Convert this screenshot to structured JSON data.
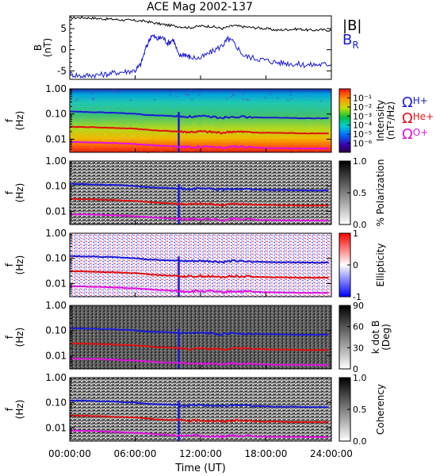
{
  "title": "ACE Mag 2002-137",
  "chart_data": [
    {
      "type": "line",
      "panel": "field",
      "ylabel": "B (nT)",
      "ylabel_main": "B",
      "ylabel_unit": "(nT)",
      "ylim": [
        -7,
        8
      ],
      "yticks": [
        "5",
        "0",
        "-5"
      ],
      "ytick_values": [
        5,
        0,
        -5
      ],
      "legend": [
        {
          "text": "|B|",
          "color": "#000000"
        },
        {
          "text": "B",
          "sub": "R",
          "color": "#1a1ad6"
        }
      ],
      "series": [
        {
          "name": "|B|",
          "color": "#000000",
          "x": [
            0,
            1,
            2,
            3,
            4,
            5,
            6,
            7,
            8,
            9,
            10,
            11,
            12,
            13,
            14,
            15,
            16,
            17,
            18,
            19,
            20,
            21,
            22,
            23,
            24
          ],
          "y": [
            7.5,
            7.6,
            7.5,
            7.3,
            7.2,
            7.0,
            6.9,
            6.7,
            6.2,
            5.8,
            5.5,
            5.2,
            5.6,
            5.5,
            5.0,
            5.7,
            5.4,
            5.2,
            5.0,
            4.6,
            4.8,
            4.9,
            4.6,
            4.7,
            4.6
          ]
        },
        {
          "name": "B_R",
          "color": "#1a1ad6",
          "x": [
            0,
            1,
            2,
            3,
            4,
            5,
            6,
            6.5,
            7,
            7.5,
            8,
            8.5,
            9,
            9.5,
            10,
            10.5,
            11,
            12,
            13,
            14,
            14.5,
            15,
            16,
            17,
            18,
            19,
            20,
            21,
            22,
            23,
            24
          ],
          "y": [
            -5.7,
            -6.2,
            -6.0,
            -5.9,
            -5.5,
            -5.2,
            -4.9,
            -3.5,
            0.5,
            3.5,
            2.5,
            3.0,
            1.5,
            2.5,
            -1.5,
            -1.0,
            -1.8,
            -2.0,
            -0.5,
            1.0,
            2.5,
            1.8,
            -1.5,
            -2.0,
            -2.5,
            -3.0,
            -3.2,
            -3.5,
            -3.6,
            -3.5,
            -3.4
          ]
        }
      ]
    },
    {
      "type": "heatmap",
      "panel": "intensity",
      "ylabel": "f (Hz)",
      "yticks": [
        "1.00",
        "0.10",
        "0.01"
      ],
      "ylim": [
        0.003,
        1.0
      ],
      "colorbar": {
        "label": "Intensity (nT²/Hz)",
        "label_main": "Intensity",
        "label_unit": "(nT²/Hz)",
        "ticks": [
          "10⁻¹",
          "10⁻²",
          "10⁻³",
          "10⁻⁴",
          "10⁻⁵",
          "10⁻⁶"
        ],
        "tick_values": [
          -1,
          -2,
          -3,
          -4,
          -5,
          -6
        ],
        "range": [
          -7,
          0
        ],
        "palette": "rainbow"
      },
      "side_labels": [
        {
          "text": "Ω",
          "sub": "H+",
          "color": "#1a1ad6"
        },
        {
          "text": "Ω",
          "sub": "He+",
          "color": "#e01010"
        },
        {
          "text": "Ω",
          "sub": "O+",
          "color": "#e010e0"
        }
      ]
    },
    {
      "type": "heatmap",
      "panel": "polarization",
      "ylabel": "f (Hz)",
      "yticks": [
        "1.00",
        "0.10",
        "0.01"
      ],
      "colorbar": {
        "label": "% Polarization",
        "ticks": [
          "1.0",
          "0.5",
          "0.0"
        ],
        "tick_values": [
          1,
          0.5,
          0
        ],
        "range": [
          0,
          1
        ],
        "palette": "gray"
      }
    },
    {
      "type": "heatmap",
      "panel": "ellipticity",
      "ylabel": "f (Hz)",
      "yticks": [
        "1.00",
        "0.10",
        "0.01"
      ],
      "colorbar": {
        "label": "Ellipticity",
        "ticks": [
          "1",
          "0",
          "-1"
        ],
        "tick_values": [
          1,
          0,
          -1
        ],
        "range": [
          -1,
          1
        ],
        "palette": "bwr"
      }
    },
    {
      "type": "heatmap",
      "panel": "kdotb",
      "ylabel": "f (Hz)",
      "yticks": [
        "1.00",
        "0.10",
        "0.01"
      ],
      "colorbar": {
        "label": "k dot B (Deg)",
        "label_main": "k dot B",
        "label_unit": "(Deg)",
        "ticks": [
          "90",
          "60",
          "30",
          "0"
        ],
        "tick_values": [
          90,
          60,
          30,
          0
        ],
        "range": [
          0,
          90
        ],
        "palette": "gray"
      }
    },
    {
      "type": "heatmap",
      "panel": "coherency",
      "ylabel": "f (Hz)",
      "yticks": [
        "1.00",
        "0.10",
        "0.01"
      ],
      "colorbar": {
        "label": "Coherency",
        "ticks": [
          "1.0",
          "0.5",
          "0.0"
        ],
        "tick_values": [
          1,
          0.5,
          0
        ],
        "range": [
          0,
          1
        ],
        "palette": "gray"
      }
    }
  ],
  "gyro_lines": {
    "x": [
      0,
      2,
      4,
      6,
      7,
      8,
      9,
      10,
      11,
      12,
      13,
      14,
      15,
      16,
      18,
      20,
      22,
      24
    ],
    "H": [
      0.125,
      0.118,
      0.112,
      0.102,
      0.092,
      0.088,
      0.085,
      0.08,
      0.078,
      0.08,
      0.078,
      0.072,
      0.08,
      0.076,
      0.072,
      0.07,
      0.068,
      0.068
    ],
    "He": [
      0.031,
      0.03,
      0.028,
      0.026,
      0.024,
      0.022,
      0.021,
      0.02,
      0.019,
      0.02,
      0.019,
      0.018,
      0.02,
      0.019,
      0.018,
      0.0175,
      0.017,
      0.017
    ],
    "O": [
      0.0078,
      0.0075,
      0.007,
      0.0064,
      0.006,
      0.0056,
      0.0053,
      0.005,
      0.0049,
      0.005,
      0.0049,
      0.0045,
      0.005,
      0.0048,
      0.0045,
      0.0044,
      0.0043,
      0.0043
    ],
    "colors": {
      "H": "#1a1ad6",
      "He": "#e01010",
      "O": "#e010e0"
    }
  },
  "xaxis": {
    "label": "Time (UT)",
    "ticks": [
      "00:00:00",
      "06:00:00",
      "12:00:00",
      "18:00:00",
      "24:00:00"
    ],
    "tick_values": [
      0,
      6,
      12,
      18,
      24
    ],
    "range": [
      0,
      24
    ]
  }
}
